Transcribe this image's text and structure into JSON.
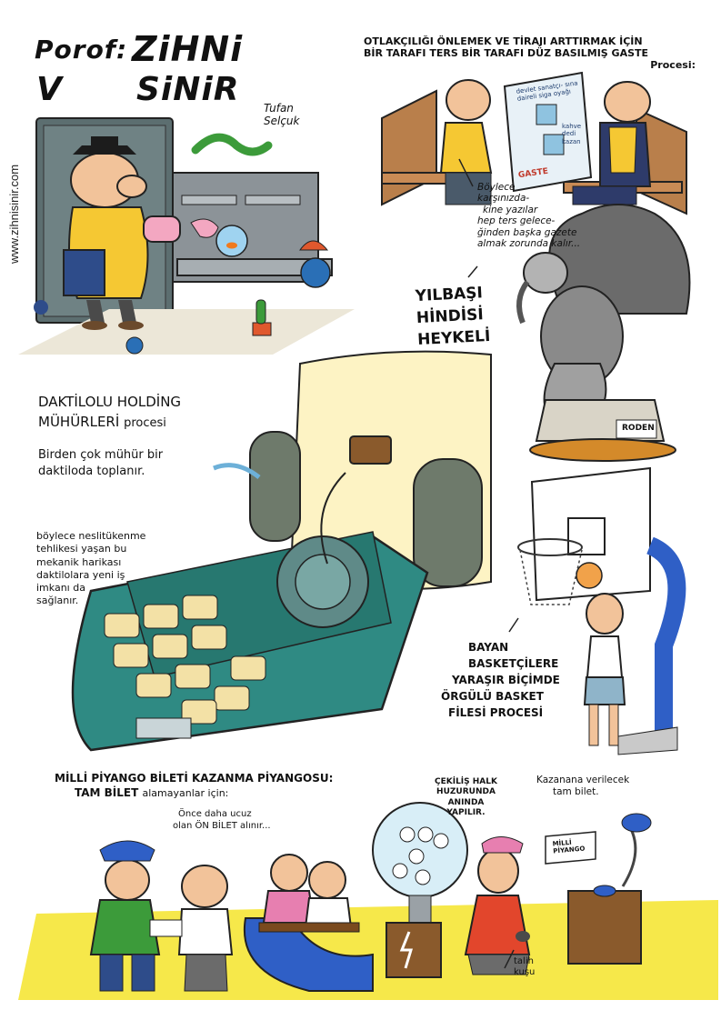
{
  "title": {
    "line1_a": "Porof:",
    "line1_b": "ZiHNi",
    "line2_a": "V",
    "line2_b": "SiNiR"
  },
  "signature": {
    "line1": "Tufan",
    "line2": "Selçuk"
  },
  "website": "www.zihnisinir.com",
  "panel_newspaper": {
    "heading_line1": "OTLAKÇILIĞI ÖNLEMEK VE TİRAJI ARTTIRMAK İÇİN",
    "heading_line2": "BİR TARAFI TERS BİR TARAFI DÜZ BASILMIŞ GASTE",
    "heading_line3": "Procesi:",
    "caption_line1": "Böylece",
    "caption_line2": "karşınızda-",
    "caption_line3": "kine yazılar",
    "caption_line4": "hep ters gelece-",
    "caption_line5": "ğinden başka gazete",
    "caption_line6": "almak zorunda kalır...",
    "paper_text_a": "devlet sanatçı- sına daireli siga oyağı",
    "paper_text_b": "kahve dedi kazan",
    "paper_text_c": "GASTE"
  },
  "panel_turkey": {
    "line1": "YILBAŞI",
    "line2": "HİNDİSİ",
    "line3": "HEYKELİ",
    "plaque": "RODEN"
  },
  "panel_typewriter": {
    "title_line1": "DAKTİLOLU HOLDİNG",
    "title_line2a": "MÜHÜRLERİ",
    "title_line2b": "procesi",
    "desc_line1": "Birden çok mühür bir",
    "desc_line2": "daktiloda toplanır.",
    "note_line1": "böylece neslitükenme",
    "note_line2": "tehlikesi yaşan bu",
    "note_line3": "mekanik harikası",
    "note_line4": "daktilolara yeni iş",
    "note_line5": "imkanı da",
    "note_line6": "sağlanır."
  },
  "panel_basket": {
    "line1": "BAYAN",
    "line2": "BASKETÇİLERE",
    "line3": "YARAŞIR BİÇİMDE",
    "line4": "ÖRGÜLÜ BASKET",
    "line5": "FİLESİ PROCESİ"
  },
  "panel_lottery": {
    "heading_line1": "MİLLİ PİYANGO BİLETİ KAZANMA PİYANGOSU:",
    "heading_line2a": "TAM BİLET",
    "heading_line2b": "alamayanlar için:",
    "bubble_line1": "Önce daha ucuz",
    "bubble_line2": "olan ÖN BİLET alınır...",
    "draw_line1": "ÇEKİLİŞ HALK",
    "draw_line2": "HUZURUNDA",
    "draw_line3": "ANINDA",
    "draw_line4": "YAPILIR.",
    "prize_line1": "Kazanana verilecek",
    "prize_line2": "tam bilet.",
    "ticket_line1": "MİLLİ",
    "ticket_line2": "PİYANGO",
    "bird_line1": "talih",
    "bird_line2": "kuşu"
  },
  "colors": {
    "typewriter_green": "#2f8a83",
    "key_cream": "#f3e1a6",
    "paper_yellow": "#fdf3c4",
    "lottery_yellow": "#f6e84a",
    "backboard_blue": "#2f5fc6",
    "turkey_gray": "#6b6b6b",
    "desk_gray": "#8c9398",
    "skin": "#f2c39a",
    "sweater_yellow": "#f5c833",
    "pink": "#f3a7c1",
    "bench_brown": "#b97f4b"
  }
}
